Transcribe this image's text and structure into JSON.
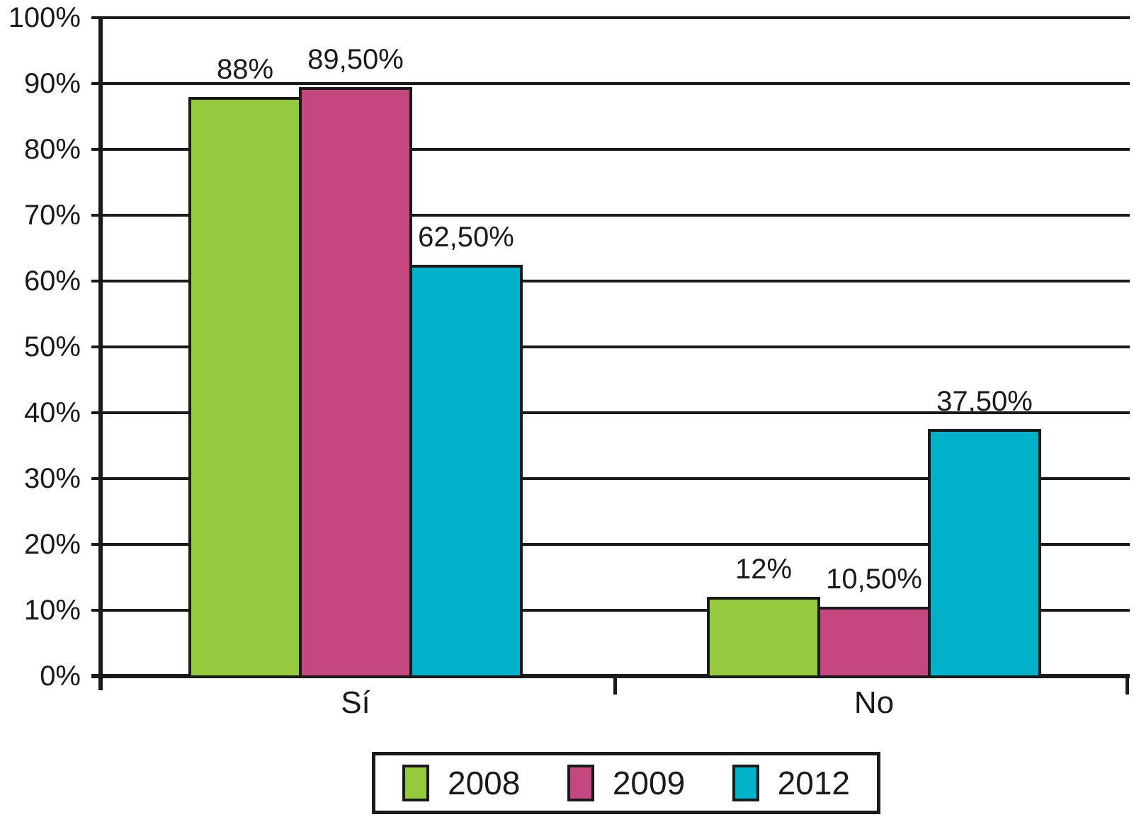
{
  "chart_data": {
    "type": "bar",
    "categories": [
      "Sí",
      "No"
    ],
    "series": [
      {
        "name": "2008",
        "color": "#96CA3E",
        "values": [
          88,
          12
        ],
        "value_labels": [
          "88%",
          "12%"
        ]
      },
      {
        "name": "2009",
        "color": "#C4477F",
        "values": [
          89.5,
          10.5
        ],
        "value_labels": [
          "89,50%",
          "10,50%"
        ]
      },
      {
        "name": "2012",
        "color": "#00B2C9",
        "values": [
          62.5,
          37.5
        ],
        "value_labels": [
          "62,50%",
          "37,50%"
        ]
      }
    ],
    "y_axis": {
      "min": 0,
      "max": 100,
      "step": 10,
      "tick_labels": [
        "0%",
        "10%",
        "20%",
        "30%",
        "40%",
        "50%",
        "60%",
        "70%",
        "80%",
        "90%",
        "100%"
      ]
    },
    "grid": true,
    "legend": {
      "position": "bottom",
      "entries": [
        "2008",
        "2009",
        "2012"
      ]
    },
    "axis_color": "#1A1A1A",
    "text_color": "#1A1A1A",
    "background": "#FFFFFF"
  }
}
